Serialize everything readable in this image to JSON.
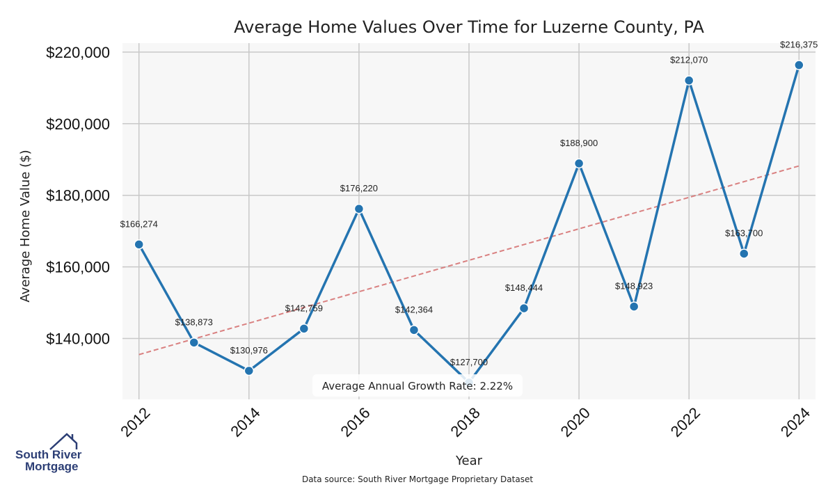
{
  "chart_data": {
    "type": "line",
    "title": "Average Home Values Over Time for Luzerne County, PA",
    "xlabel": "Year",
    "ylabel": "Average Home Value ($)",
    "x": [
      2012,
      2013,
      2014,
      2015,
      2016,
      2017,
      2018,
      2019,
      2020,
      2021,
      2022,
      2023,
      2024
    ],
    "x_tick_labels": [
      "2012",
      "2014",
      "2016",
      "2018",
      "2020",
      "2022",
      "2024"
    ],
    "y_tick_values": [
      140000,
      160000,
      180000,
      200000,
      220000
    ],
    "y_tick_labels": [
      "$140,000",
      "$160,000",
      "$180,000",
      "$200,000",
      "$220,000"
    ],
    "ylim": [
      123000,
      222500
    ],
    "xlim": [
      2011.7,
      2024.3
    ],
    "grid": true,
    "series": [
      {
        "values": [
          166274,
          138873,
          130976,
          142759,
          176220,
          142364,
          127700,
          148444,
          188900,
          148923,
          212070,
          163700,
          216375
        ],
        "labels": [
          "$166,274",
          "$138,873",
          "$130,976",
          "$142,759",
          "$176,220",
          "$142,364",
          "$127,700",
          "$148,444",
          "$188,900",
          "$148,923",
          "$212,070",
          "$163,700",
          "$216,375"
        ],
        "color": "#2474b0"
      }
    ],
    "trendline": {
      "start": [
        2012,
        135500
      ],
      "end": [
        2024,
        188200
      ],
      "color": "#d98080"
    },
    "annotation": "Average Annual Growth Rate: 2.22%",
    "source": "Data source: South River Mortgage Proprietary Dataset"
  },
  "logo": {
    "line1": "South River",
    "line2": "Mortgage",
    "color": "#2c3e75"
  }
}
